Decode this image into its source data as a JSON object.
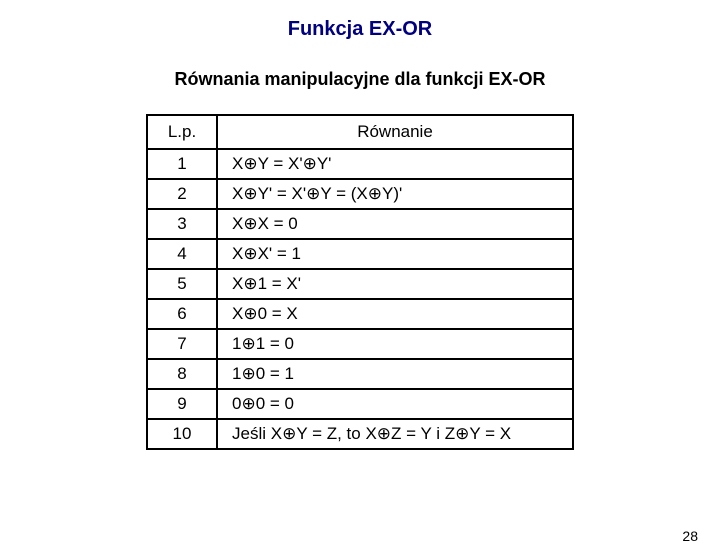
{
  "title": "Funkcja EX-OR",
  "subtitle": "Równania manipulacyjne dla funkcji EX-OR",
  "columns": {
    "lp": "L.p.",
    "eq": "Równanie"
  },
  "rows": [
    {
      "lp": "1",
      "eq": "X⊕Y = X'⊕Y'"
    },
    {
      "lp": "2",
      "eq": "X⊕Y' = X'⊕Y = (X⊕Y)'"
    },
    {
      "lp": "3",
      "eq": "X⊕X = 0"
    },
    {
      "lp": "4",
      "eq": "X⊕X' = 1"
    },
    {
      "lp": "5",
      "eq": "X⊕1 = X'"
    },
    {
      "lp": "6",
      "eq": "X⊕0 = X"
    },
    {
      "lp": "7",
      "eq": "1⊕1 = 0"
    },
    {
      "lp": "8",
      "eq": "1⊕0 = 1"
    },
    {
      "lp": "9",
      "eq": "0⊕0 = 0"
    },
    {
      "lp": "10",
      "eq": "Jeśli X⊕Y = Z, to X⊕Z = Y i Z⊕Y = X"
    }
  ],
  "page_number": "28"
}
